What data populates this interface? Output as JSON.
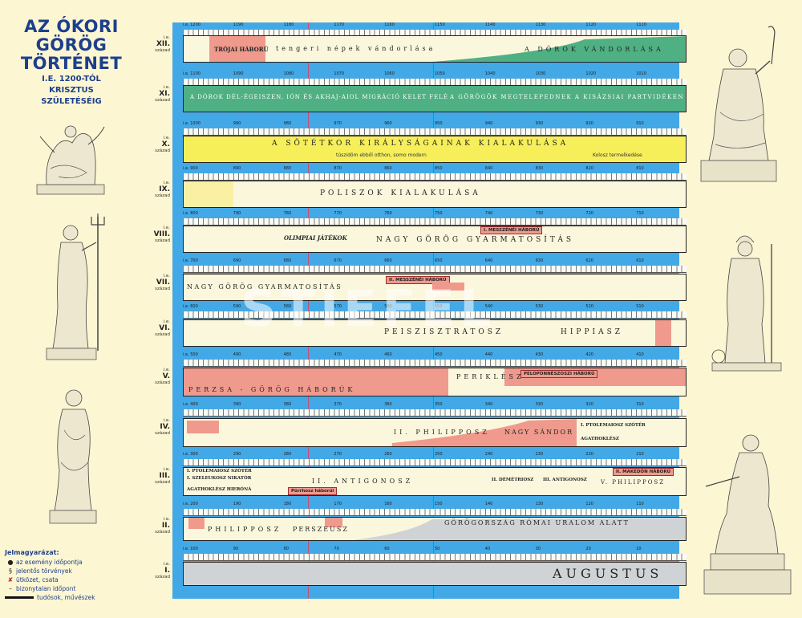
{
  "title": {
    "line1": "AZ ÓKORI",
    "line2": "GÖRÖG",
    "line3": "TÖRTÉNET",
    "sub1": "I.E. 1200-TÓL",
    "sub2": "KRISZTUS",
    "sub3": "SZÜLETÉSÉIG"
  },
  "legend": {
    "title": "Jelmagyarázat:",
    "items": [
      {
        "symbol": "●",
        "text": "az esemény időpontja"
      },
      {
        "symbol": "§",
        "text": "jelentős törvények"
      },
      {
        "symbol": "✘",
        "text": "ütközet, csata"
      },
      {
        "symbol": "–",
        "text": "bizonytalan időpont"
      },
      {
        "symbol": "bar",
        "text": "tudósok, művészek"
      }
    ]
  },
  "watermark": "STIEFEL",
  "centuries": [
    {
      "roman": "XII.",
      "ie": "i.e.",
      "sz": "század",
      "ticks": [
        "i.e. 1200",
        "1190",
        "1180",
        "1170",
        "1160",
        "1150",
        "1140",
        "1130",
        "1120",
        "1110"
      ],
      "band_style": "split",
      "texts": [
        "TRÓJAI HÁBORÚ",
        "tengeri népek vándorlása",
        "A DÓROK VÁNDORLÁSA"
      ]
    },
    {
      "roman": "XI.",
      "ie": "i.e.",
      "sz": "század",
      "ticks": [
        "i.e. 1100",
        "1090",
        "1080",
        "1070",
        "1060",
        "1050",
        "1040",
        "1030",
        "1020",
        "1010"
      ],
      "band_style": "green",
      "texts": [
        "A DÓROK DÉL-ÉGEISZEN, IÓN ÉS AKHAJ-AIOL MIGRÁCIÓ KELET FELÉ",
        "A GÖRÖGÖK MEGTELEPEDNEK A KISÁZSIAI PARTVIDÉKEN"
      ]
    },
    {
      "roman": "X.",
      "ie": "i.e.",
      "sz": "század",
      "ticks": [
        "i.e. 1000",
        "990",
        "980",
        "970",
        "960",
        "950",
        "940",
        "930",
        "920",
        "910"
      ],
      "band_style": "yellow",
      "texts": [
        "A SÖTÉTKOR KIRÁLYSÁGAINAK KIALAKULÁSA",
        "túszidöm ebből otthon, somo modern",
        "Kolosz termelkedése"
      ]
    },
    {
      "roman": "IX.",
      "ie": "i.e.",
      "sz": "század",
      "ticks": [
        "i.e. 900",
        "890",
        "880",
        "870",
        "860",
        "850",
        "840",
        "830",
        "820",
        "810"
      ],
      "band_style": "cream",
      "texts": [
        "POLISZOK KIALAKULÁSA"
      ]
    },
    {
      "roman": "VIII.",
      "ie": "i.e.",
      "sz": "század",
      "ticks": [
        "i.e. 800",
        "790",
        "780",
        "770",
        "760",
        "750",
        "740",
        "730",
        "720",
        "710"
      ],
      "band_style": "cream",
      "texts": [
        "OLIMPIAI JÁTÉKOK",
        "NAGY GÖRÖG GYARMATOSÍTÁS",
        "I. MESSZÉNÉI HÁBORÚ"
      ]
    },
    {
      "roman": "VII.",
      "ie": "i.e.",
      "sz": "század",
      "ticks": [
        "i.e. 700",
        "690",
        "680",
        "670",
        "660",
        "650",
        "640",
        "630",
        "620",
        "610"
      ],
      "band_style": "cream",
      "texts": [
        "NAGY GÖRÖG GYARMATOSÍTÁS",
        "II. MESSZÉNÉI HÁBORÚ"
      ]
    },
    {
      "roman": "VI.",
      "ie": "i.e.",
      "sz": "század",
      "ticks": [
        "i.e. 600",
        "590",
        "580",
        "570",
        "560",
        "550",
        "540",
        "530",
        "520",
        "510"
      ],
      "band_style": "cream",
      "texts": [
        "PEISZISZTRATOSZ",
        "HIPPIASZ"
      ]
    },
    {
      "roman": "V.",
      "ie": "i.e.",
      "sz": "század",
      "ticks": [
        "i.e. 500",
        "490",
        "480",
        "470",
        "460",
        "450",
        "440",
        "430",
        "420",
        "410"
      ],
      "band_style": "pink",
      "texts": [
        "PERZSA - GÖRÖG HÁBORÚK",
        "PERIKLÉSZ",
        "PELOPONNÉSZOSZI HÁBORÚ"
      ]
    },
    {
      "roman": "IV.",
      "ie": "i.e.",
      "sz": "század",
      "ticks": [
        "i.e. 400",
        "390",
        "380",
        "370",
        "360",
        "350",
        "340",
        "330",
        "320",
        "310"
      ],
      "band_style": "cream",
      "texts": [
        "II. PHILIPPOSZ",
        "NAGY SÁNDOR",
        "I. PTOLEMAIOSZ SZÓTÉR",
        "AGATHOKLÉSZ"
      ]
    },
    {
      "roman": "III.",
      "ie": "i.e.",
      "sz": "század",
      "ticks": [
        "i.e. 300",
        "290",
        "280",
        "270",
        "260",
        "250",
        "240",
        "230",
        "220",
        "210"
      ],
      "band_style": "cream",
      "texts": [
        "I. PTOLEMAIOSZ SZÓTÉR",
        "I. SZELEUKOSZ NIKATÓR",
        "AGATHOKLÉSZ HIERÓNÁ",
        "II. ANTIGONOSZ",
        "II. DÉMÉTRIOSZ",
        "III. ANTIGONOSZ",
        "V. PHILIPPOSZ",
        "II. MAKEDÓN HÁBORÚ",
        "Pürrhosz háborúi"
      ]
    },
    {
      "roman": "II.",
      "ie": "i.e.",
      "sz": "század",
      "ticks": [
        "i.e. 200",
        "190",
        "180",
        "170",
        "160",
        "150",
        "140",
        "130",
        "120",
        "110"
      ],
      "band_style": "cream",
      "texts": [
        "PHILIPPOSZ",
        "PERSZEUSZ",
        "GÖRÖGORSZÁG RÓMAI URALOM ALATT"
      ]
    },
    {
      "roman": "I.",
      "ie": "i.e.",
      "sz": "század",
      "ticks": [
        "i.e. 100",
        "90",
        "80",
        "70",
        "60",
        "50",
        "40",
        "30",
        "20",
        "10"
      ],
      "band_style": "grey",
      "texts": [
        "AUGUSTUS"
      ]
    }
  ],
  "colors": {
    "board": "#42a8e6",
    "green": "#4fb083",
    "yellow": "#f6ef5a",
    "pink": "#ef9a8d",
    "grey": "#cfd3d6",
    "cream": "#fbf7dd",
    "title": "#1c3f8c"
  }
}
